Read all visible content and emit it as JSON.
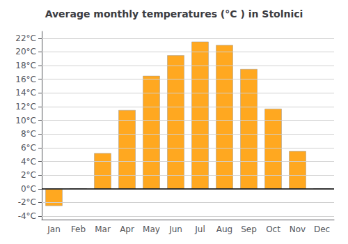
{
  "chart_data": {
    "type": "bar",
    "title": "Average monthly temperatures (°C ) in Stolnici",
    "categories": [
      "Jan",
      "Feb",
      "Mar",
      "Apr",
      "May",
      "Jun",
      "Jul",
      "Aug",
      "Sep",
      "Oct",
      "Nov",
      "Dec"
    ],
    "values": [
      -2.5,
      0.0,
      5.2,
      11.5,
      16.5,
      19.5,
      21.5,
      21.0,
      17.5,
      11.7,
      5.5,
      0.0
    ],
    "color": "#FFA820",
    "ylim": [
      -4.5,
      23
    ],
    "yticks": [
      {
        "value": -4,
        "label": "-4°C"
      },
      {
        "value": -2,
        "label": "-2°C"
      },
      {
        "value": 0,
        "label": "0°C"
      },
      {
        "value": 2,
        "label": "2°C"
      },
      {
        "value": 4,
        "label": "4°C"
      },
      {
        "value": 6,
        "label": "6°C"
      },
      {
        "value": 8,
        "label": "8°C"
      },
      {
        "value": 10,
        "label": "10°C"
      },
      {
        "value": 12,
        "label": "12°C"
      },
      {
        "value": 14,
        "label": "14°C"
      },
      {
        "value": 16,
        "label": "16°C"
      },
      {
        "value": 18,
        "label": "18°C"
      },
      {
        "value": 20,
        "label": "20°C"
      },
      {
        "value": 22,
        "label": "22°C"
      }
    ],
    "grid": true
  }
}
